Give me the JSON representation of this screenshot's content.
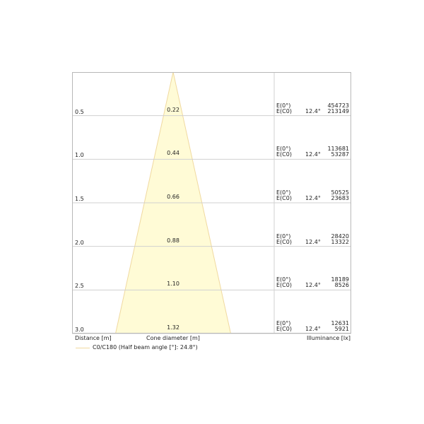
{
  "labels": {
    "distance": "Distance [m]",
    "cone_diameter": "Cone diameter [m]",
    "illuminance": "Illuminance [lx]",
    "legend": "C0/C180 (Half beam angle [°]: 24.8°)"
  },
  "colors": {
    "cone_fill": "#fffbd6",
    "cone_stroke": "#f0d9a0",
    "grid": "#d0d0d0"
  },
  "rows": [
    {
      "distance": "0.5",
      "diameter": "0.22",
      "e0_label": "E(0°)",
      "ec0_label": "E(C0)",
      "angle": "12.4°",
      "e0": "454723",
      "ec0": "213149"
    },
    {
      "distance": "1.0",
      "diameter": "0.44",
      "e0_label": "E(0°)",
      "ec0_label": "E(C0)",
      "angle": "12.4°",
      "e0": "113681",
      "ec0": "53287"
    },
    {
      "distance": "1.5",
      "diameter": "0.66",
      "e0_label": "E(0°)",
      "ec0_label": "E(C0)",
      "angle": "12.4°",
      "e0": "50525",
      "ec0": "23683"
    },
    {
      "distance": "2.0",
      "diameter": "0.88",
      "e0_label": "E(0°)",
      "ec0_label": "E(C0)",
      "angle": "12.4°",
      "e0": "28420",
      "ec0": "13322"
    },
    {
      "distance": "2.5",
      "diameter": "1.10",
      "e0_label": "E(0°)",
      "ec0_label": "E(C0)",
      "angle": "12.4°",
      "e0": "18189",
      "ec0": "8526"
    },
    {
      "distance": "3.0",
      "diameter": "1.32",
      "e0_label": "E(0°)",
      "ec0_label": "E(C0)",
      "angle": "12.4°",
      "e0": "12631",
      "ec0": "5921"
    }
  ]
}
